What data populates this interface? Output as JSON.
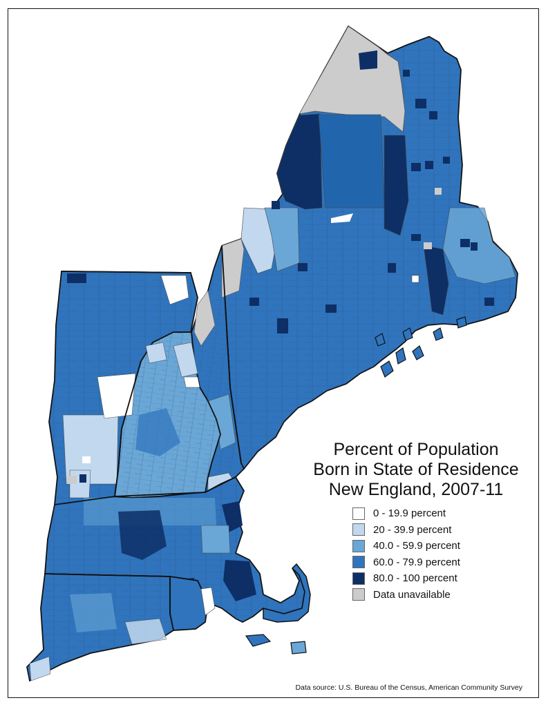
{
  "title_lines": [
    "Percent of Population",
    "Born in State of Residence",
    "New England, 2007-11"
  ],
  "legend": [
    {
      "label": "0 - 19.9 percent",
      "color": "#ffffff"
    },
    {
      "label": "20 - 39.9 percent",
      "color": "#c2d8ee"
    },
    {
      "label": "40.0 - 59.9 percent",
      "color": "#6aa7d6"
    },
    {
      "label": "60.0 - 79.9 percent",
      "color": "#2f74bd"
    },
    {
      "label": "80.0 - 100 percent",
      "color": "#0d2f66"
    },
    {
      "label": "Data unavailable",
      "color": "#cccccc"
    }
  ],
  "source": "Data source: U.S. Bureau of the Census, American Community Survey",
  "colors": {
    "border": "#444444",
    "state_border": "#111111",
    "ocean": "#ffffff"
  }
}
